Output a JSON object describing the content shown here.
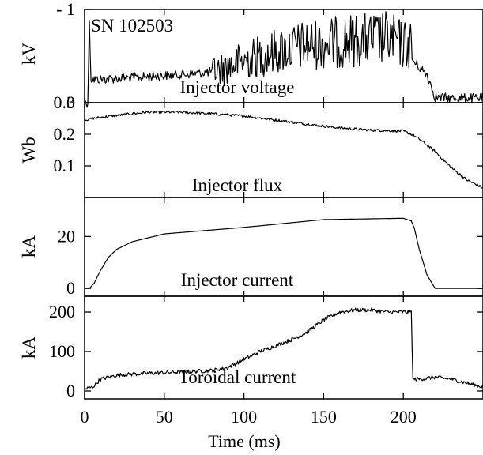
{
  "chart_data": [
    {
      "type": "line",
      "title": "",
      "annotation": "SN 102503",
      "series_label": "Injector voltage",
      "ylabel": "kV",
      "ylim": [
        0,
        -1
      ],
      "yticks": [
        {
          "v": -1,
          "label": "- 1"
        },
        {
          "v": 0,
          "label": "0"
        }
      ],
      "xlim": [
        0,
        250
      ],
      "series": [
        {
          "name": "Injector voltage",
          "noise": 0.05,
          "x": [
            0,
            2,
            3,
            4,
            10,
            30,
            60,
            80,
            100,
            120,
            140,
            160,
            170,
            180,
            190,
            200,
            205,
            206,
            210,
            215,
            220,
            230,
            250
          ],
          "y": [
            0,
            0,
            -0.85,
            -0.25,
            -0.25,
            -0.27,
            -0.3,
            -0.33,
            -0.45,
            -0.55,
            -0.62,
            -0.65,
            -0.67,
            -0.68,
            -0.69,
            -0.62,
            -0.62,
            -0.45,
            -0.38,
            -0.3,
            -0.06,
            -0.05,
            -0.05
          ]
        }
      ]
    },
    {
      "type": "line",
      "title": "",
      "series_label": "Injector flux",
      "ylabel": "Wb",
      "ylim": [
        0,
        0.3
      ],
      "yticks": [
        {
          "v": 0.1,
          "label": "0.1"
        },
        {
          "v": 0.2,
          "label": "0.2"
        },
        {
          "v": 0.3,
          "label": "0.3"
        }
      ],
      "xlim": [
        0,
        250
      ],
      "series": [
        {
          "name": "Injector flux",
          "noise": 0.004,
          "x": [
            0,
            5,
            20,
            40,
            60,
            80,
            100,
            120,
            140,
            160,
            180,
            200,
            205,
            210,
            220,
            230,
            240,
            250
          ],
          "y": [
            0.245,
            0.25,
            0.26,
            0.27,
            0.27,
            0.265,
            0.258,
            0.245,
            0.232,
            0.22,
            0.213,
            0.21,
            0.2,
            0.185,
            0.145,
            0.095,
            0.055,
            0.03
          ]
        }
      ]
    },
    {
      "type": "line",
      "title": "",
      "series_label": "Injector current",
      "ylabel": "kA",
      "ylim": [
        -3,
        35
      ],
      "yticks": [
        {
          "v": 0,
          "label": "0"
        },
        {
          "v": 20,
          "label": "20"
        }
      ],
      "xlim": [
        0,
        250
      ],
      "series": [
        {
          "name": "Injector current",
          "noise": 0,
          "x": [
            0,
            3,
            6,
            10,
            15,
            20,
            30,
            40,
            50,
            100,
            150,
            200,
            205,
            207,
            210,
            215,
            220,
            250
          ],
          "y": [
            0,
            0,
            2,
            7,
            12,
            15,
            18,
            19.5,
            21,
            23.5,
            26.5,
            27,
            26,
            23,
            15,
            5,
            0,
            0
          ]
        }
      ]
    },
    {
      "type": "line",
      "title": "",
      "series_label": "Toroidal current",
      "ylabel": "kA",
      "xlabel": "Time (ms)",
      "ylim": [
        -20,
        240
      ],
      "yticks": [
        {
          "v": 0,
          "label": "0"
        },
        {
          "v": 100,
          "label": "100"
        },
        {
          "v": 200,
          "label": "200"
        }
      ],
      "xlim": [
        0,
        250
      ],
      "xticks": [
        {
          "v": 0,
          "label": "0"
        },
        {
          "v": 50,
          "label": "50"
        },
        {
          "v": 100,
          "label": "100"
        },
        {
          "v": 150,
          "label": "150"
        },
        {
          "v": 200,
          "label": "200"
        }
      ],
      "series": [
        {
          "name": "Toroidal current",
          "noise": 5,
          "x": [
            0,
            5,
            10,
            20,
            40,
            60,
            80,
            90,
            100,
            110,
            120,
            130,
            140,
            150,
            160,
            170,
            180,
            190,
            200,
            205,
            206,
            210,
            220,
            230,
            240,
            250
          ],
          "y": [
            5,
            10,
            30,
            40,
            45,
            48,
            52,
            60,
            80,
            100,
            115,
            130,
            150,
            180,
            200,
            205,
            205,
            200,
            200,
            200,
            30,
            30,
            35,
            30,
            20,
            10
          ]
        }
      ]
    }
  ]
}
